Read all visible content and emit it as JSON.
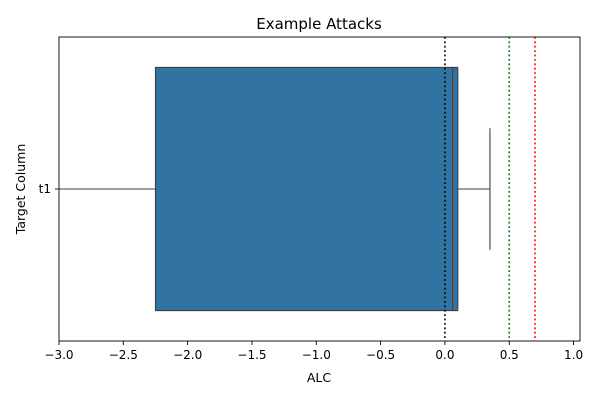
{
  "chart_data": {
    "type": "boxplot",
    "orientation": "horizontal",
    "title": "Example Attacks",
    "xlabel": "ALC",
    "ylabel": "Target Column",
    "xlim": [
      -3.0,
      1.05
    ],
    "xticks": [
      -3.0,
      -2.5,
      -2.0,
      -1.5,
      -1.0,
      -0.5,
      0.0,
      0.5,
      1.0
    ],
    "xtick_labels": [
      "−3.0",
      "−2.5",
      "−2.0",
      "−1.5",
      "−1.0",
      "−0.5",
      "0.0",
      "0.5",
      "1.0"
    ],
    "categories": [
      "t1"
    ],
    "boxes": [
      {
        "category": "t1",
        "whisker_low": -3.0,
        "q1": -2.25,
        "median": 0.06,
        "q3": 0.1,
        "whisker_high": 0.35,
        "color": "#3274a1"
      }
    ],
    "reference_lines": [
      {
        "x": 0.0,
        "color": "#000000",
        "style": "dotted"
      },
      {
        "x": 0.5,
        "color": "#008000",
        "style": "dotted"
      },
      {
        "x": 0.7,
        "color": "#ff0000",
        "style": "dotted"
      }
    ],
    "grid": false,
    "legend": "none"
  }
}
